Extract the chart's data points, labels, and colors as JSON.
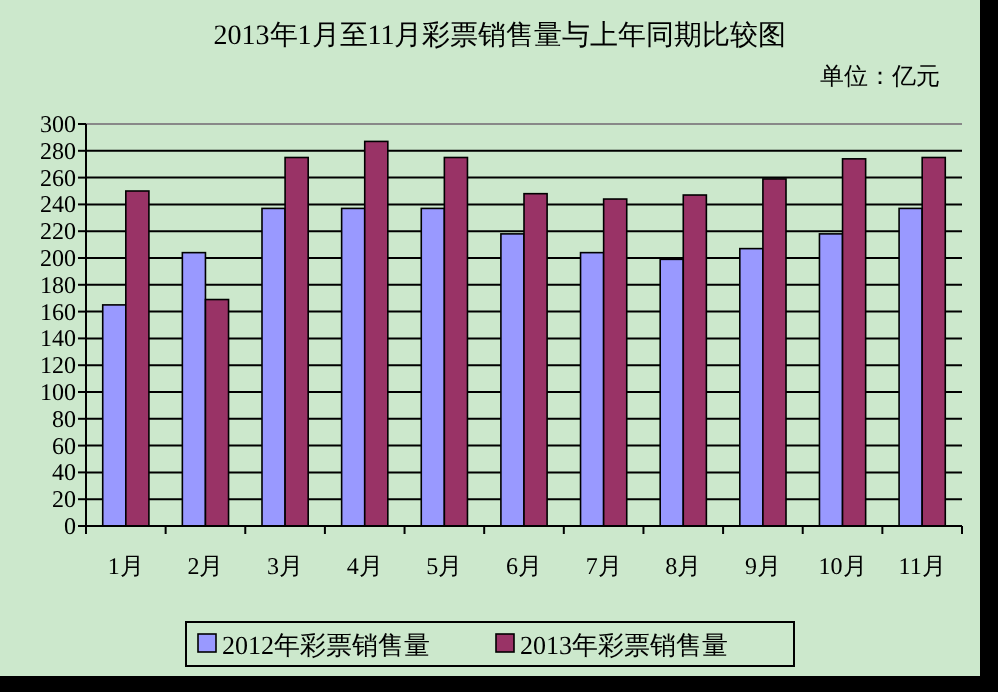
{
  "chart_data": {
    "type": "bar",
    "title": "2013年1月至11月彩票销售量与上年同期比较图",
    "annotations": [
      "单位：亿元"
    ],
    "categories": [
      "1月",
      "2月",
      "3月",
      "4月",
      "5月",
      "6月",
      "7月",
      "8月",
      "9月",
      "10月",
      "11月"
    ],
    "series": [
      {
        "name": "2012年彩票销售量",
        "color": "#9999ff",
        "values": [
          165,
          204,
          237,
          237,
          237,
          218,
          204,
          199,
          207,
          218,
          237
        ]
      },
      {
        "name": "2013年彩票销售量",
        "color": "#993366",
        "values": [
          250,
          169,
          275,
          287,
          275,
          248,
          244,
          247,
          259,
          274,
          275
        ]
      }
    ],
    "ylim": [
      0,
      300
    ],
    "yticks": [
      0,
      20,
      40,
      60,
      80,
      100,
      120,
      140,
      160,
      180,
      200,
      220,
      240,
      260,
      280,
      300
    ],
    "grid": "y",
    "legend": "bottom"
  }
}
